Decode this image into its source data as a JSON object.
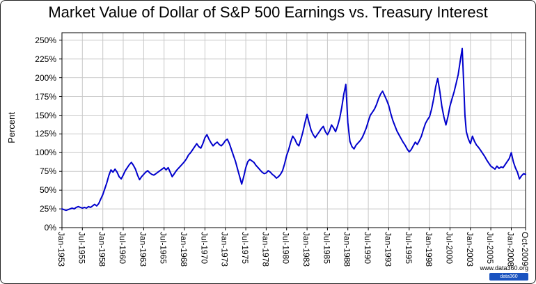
{
  "watermark": {
    "url_text": "www.data360.org",
    "logo_text": "data360",
    "logo_color": "#1a53c0"
  },
  "chart_data": {
    "type": "line",
    "title": "Market Value of Dollar of S&P 500 Earnings vs. Treasury Interest",
    "xlabel": "",
    "ylabel": "Percent",
    "xlim": [
      1953.0,
      2009.75
    ],
    "ylim": [
      0,
      260
    ],
    "grid": true,
    "legend": "none",
    "line_color": "#0000CC",
    "yticks": [
      {
        "v": 0,
        "label": "0%"
      },
      {
        "v": 25,
        "label": "25%"
      },
      {
        "v": 50,
        "label": "50%"
      },
      {
        "v": 75,
        "label": "75%"
      },
      {
        "v": 100,
        "label": "100%"
      },
      {
        "v": 125,
        "label": "125%"
      },
      {
        "v": 150,
        "label": "150%"
      },
      {
        "v": 175,
        "label": "175%"
      },
      {
        "v": 200,
        "label": "200%"
      },
      {
        "v": 225,
        "label": "225%"
      },
      {
        "v": 250,
        "label": "250%"
      }
    ],
    "xticks": [
      {
        "x": 1953.0,
        "label": "Jan-1953"
      },
      {
        "x": 1955.5,
        "label": "Jul-1955"
      },
      {
        "x": 1958.0,
        "label": "Jan-1958"
      },
      {
        "x": 1960.5,
        "label": "Jul-1960"
      },
      {
        "x": 1963.0,
        "label": "Jan-1963"
      },
      {
        "x": 1965.5,
        "label": "Jul-1965"
      },
      {
        "x": 1968.0,
        "label": "Jan-1968"
      },
      {
        "x": 1970.5,
        "label": "Jul-1970"
      },
      {
        "x": 1973.0,
        "label": "Jan-1973"
      },
      {
        "x": 1975.5,
        "label": "Jul-1975"
      },
      {
        "x": 1978.0,
        "label": "Jan-1978"
      },
      {
        "x": 1980.5,
        "label": "Jul-1980"
      },
      {
        "x": 1983.0,
        "label": "Jan-1983"
      },
      {
        "x": 1985.5,
        "label": "Jul-1985"
      },
      {
        "x": 1988.0,
        "label": "Jan-1988"
      },
      {
        "x": 1990.5,
        "label": "Jul-1990"
      },
      {
        "x": 1993.0,
        "label": "Jan-1993"
      },
      {
        "x": 1995.5,
        "label": "Jul-1995"
      },
      {
        "x": 1998.0,
        "label": "Jan-1998"
      },
      {
        "x": 2000.5,
        "label": "Jul-2000"
      },
      {
        "x": 2003.0,
        "label": "Jan-2003"
      },
      {
        "x": 2005.5,
        "label": "Jul-2005"
      },
      {
        "x": 2008.0,
        "label": "Jan-2008"
      },
      {
        "x": 2009.75,
        "label": "Oct-2009"
      }
    ],
    "series": [
      {
        "name": "Market value of dollar of S&P 500 earnings vs. treasury interest (%)",
        "points": [
          [
            1953.0,
            25
          ],
          [
            1953.25,
            24
          ],
          [
            1953.5,
            23
          ],
          [
            1953.75,
            24
          ],
          [
            1954.0,
            25
          ],
          [
            1954.25,
            26
          ],
          [
            1954.5,
            25
          ],
          [
            1954.75,
            27
          ],
          [
            1955.0,
            28
          ],
          [
            1955.25,
            27
          ],
          [
            1955.5,
            26
          ],
          [
            1955.75,
            27
          ],
          [
            1956.0,
            26
          ],
          [
            1956.25,
            28
          ],
          [
            1956.5,
            27
          ],
          [
            1956.75,
            29
          ],
          [
            1957.0,
            31
          ],
          [
            1957.25,
            29
          ],
          [
            1957.5,
            32
          ],
          [
            1957.75,
            38
          ],
          [
            1958.0,
            44
          ],
          [
            1958.25,
            52
          ],
          [
            1958.5,
            60
          ],
          [
            1958.75,
            70
          ],
          [
            1959.0,
            77
          ],
          [
            1959.25,
            74
          ],
          [
            1959.5,
            78
          ],
          [
            1959.75,
            74
          ],
          [
            1960.0,
            68
          ],
          [
            1960.25,
            65
          ],
          [
            1960.5,
            70
          ],
          [
            1960.75,
            76
          ],
          [
            1961.0,
            80
          ],
          [
            1961.25,
            84
          ],
          [
            1961.5,
            87
          ],
          [
            1961.75,
            83
          ],
          [
            1962.0,
            78
          ],
          [
            1962.25,
            70
          ],
          [
            1962.5,
            64
          ],
          [
            1962.75,
            68
          ],
          [
            1963.0,
            71
          ],
          [
            1963.25,
            74
          ],
          [
            1963.5,
            76
          ],
          [
            1963.75,
            73
          ],
          [
            1964.0,
            71
          ],
          [
            1964.25,
            70
          ],
          [
            1964.5,
            72
          ],
          [
            1964.75,
            74
          ],
          [
            1965.0,
            76
          ],
          [
            1965.25,
            78
          ],
          [
            1965.5,
            80
          ],
          [
            1965.75,
            77
          ],
          [
            1966.0,
            80
          ],
          [
            1966.25,
            74
          ],
          [
            1966.5,
            68
          ],
          [
            1966.75,
            72
          ],
          [
            1967.0,
            76
          ],
          [
            1967.25,
            79
          ],
          [
            1967.5,
            82
          ],
          [
            1967.75,
            85
          ],
          [
            1968.0,
            88
          ],
          [
            1968.25,
            92
          ],
          [
            1968.5,
            97
          ],
          [
            1968.75,
            100
          ],
          [
            1969.0,
            104
          ],
          [
            1969.25,
            108
          ],
          [
            1969.5,
            112
          ],
          [
            1969.75,
            108
          ],
          [
            1970.0,
            106
          ],
          [
            1970.25,
            112
          ],
          [
            1970.5,
            120
          ],
          [
            1970.75,
            124
          ],
          [
            1971.0,
            118
          ],
          [
            1971.25,
            113
          ],
          [
            1971.5,
            109
          ],
          [
            1971.75,
            112
          ],
          [
            1972.0,
            114
          ],
          [
            1972.25,
            111
          ],
          [
            1972.5,
            109
          ],
          [
            1972.75,
            112
          ],
          [
            1973.0,
            116
          ],
          [
            1973.25,
            118
          ],
          [
            1973.5,
            112
          ],
          [
            1973.75,
            104
          ],
          [
            1974.0,
            96
          ],
          [
            1974.25,
            88
          ],
          [
            1974.5,
            78
          ],
          [
            1974.75,
            68
          ],
          [
            1975.0,
            58
          ],
          [
            1975.25,
            68
          ],
          [
            1975.5,
            80
          ],
          [
            1975.75,
            88
          ],
          [
            1976.0,
            91
          ],
          [
            1976.25,
            89
          ],
          [
            1976.5,
            87
          ],
          [
            1976.75,
            83
          ],
          [
            1977.0,
            80
          ],
          [
            1977.25,
            77
          ],
          [
            1977.5,
            74
          ],
          [
            1977.75,
            72
          ],
          [
            1978.0,
            73
          ],
          [
            1978.25,
            76
          ],
          [
            1978.5,
            74
          ],
          [
            1978.75,
            71
          ],
          [
            1979.0,
            69
          ],
          [
            1979.25,
            66
          ],
          [
            1979.5,
            68
          ],
          [
            1979.75,
            71
          ],
          [
            1980.0,
            76
          ],
          [
            1980.25,
            85
          ],
          [
            1980.5,
            96
          ],
          [
            1980.75,
            104
          ],
          [
            1981.0,
            114
          ],
          [
            1981.25,
            122
          ],
          [
            1981.5,
            118
          ],
          [
            1981.75,
            112
          ],
          [
            1982.0,
            109
          ],
          [
            1982.25,
            118
          ],
          [
            1982.5,
            128
          ],
          [
            1982.75,
            140
          ],
          [
            1983.0,
            151
          ],
          [
            1983.25,
            140
          ],
          [
            1983.5,
            130
          ],
          [
            1983.75,
            124
          ],
          [
            1984.0,
            120
          ],
          [
            1984.25,
            124
          ],
          [
            1984.5,
            128
          ],
          [
            1984.75,
            132
          ],
          [
            1985.0,
            135
          ],
          [
            1985.25,
            128
          ],
          [
            1985.5,
            124
          ],
          [
            1985.75,
            129
          ],
          [
            1986.0,
            137
          ],
          [
            1986.25,
            133
          ],
          [
            1986.5,
            128
          ],
          [
            1986.75,
            136
          ],
          [
            1987.0,
            146
          ],
          [
            1987.25,
            160
          ],
          [
            1987.5,
            178
          ],
          [
            1987.75,
            191
          ],
          [
            1988.0,
            140
          ],
          [
            1988.25,
            115
          ],
          [
            1988.5,
            108
          ],
          [
            1988.75,
            105
          ],
          [
            1989.0,
            110
          ],
          [
            1989.25,
            113
          ],
          [
            1989.5,
            116
          ],
          [
            1989.75,
            120
          ],
          [
            1990.0,
            126
          ],
          [
            1990.25,
            133
          ],
          [
            1990.5,
            142
          ],
          [
            1990.75,
            150
          ],
          [
            1991.0,
            154
          ],
          [
            1991.25,
            158
          ],
          [
            1991.5,
            164
          ],
          [
            1991.75,
            172
          ],
          [
            1992.0,
            178
          ],
          [
            1992.25,
            182
          ],
          [
            1992.5,
            176
          ],
          [
            1992.75,
            170
          ],
          [
            1993.0,
            163
          ],
          [
            1993.25,
            152
          ],
          [
            1993.5,
            143
          ],
          [
            1993.75,
            136
          ],
          [
            1994.0,
            129
          ],
          [
            1994.25,
            124
          ],
          [
            1994.5,
            119
          ],
          [
            1994.75,
            114
          ],
          [
            1995.0,
            110
          ],
          [
            1995.25,
            105
          ],
          [
            1995.5,
            101
          ],
          [
            1995.75,
            104
          ],
          [
            1996.0,
            109
          ],
          [
            1996.25,
            114
          ],
          [
            1996.5,
            111
          ],
          [
            1996.75,
            116
          ],
          [
            1997.0,
            122
          ],
          [
            1997.25,
            131
          ],
          [
            1997.5,
            139
          ],
          [
            1997.75,
            144
          ],
          [
            1998.0,
            148
          ],
          [
            1998.25,
            158
          ],
          [
            1998.5,
            172
          ],
          [
            1998.75,
            188
          ],
          [
            1999.0,
            199
          ],
          [
            1999.25,
            182
          ],
          [
            1999.5,
            162
          ],
          [
            1999.75,
            148
          ],
          [
            2000.0,
            137
          ],
          [
            2000.25,
            148
          ],
          [
            2000.5,
            162
          ],
          [
            2000.75,
            172
          ],
          [
            2001.0,
            181
          ],
          [
            2001.25,
            192
          ],
          [
            2001.5,
            204
          ],
          [
            2001.75,
            222
          ],
          [
            2002.0,
            239
          ],
          [
            2002.17,
            195
          ],
          [
            2002.33,
            150
          ],
          [
            2002.5,
            128
          ],
          [
            2002.75,
            118
          ],
          [
            2003.0,
            112
          ],
          [
            2003.25,
            122
          ],
          [
            2003.5,
            115
          ],
          [
            2003.75,
            110
          ],
          [
            2004.0,
            107
          ],
          [
            2004.25,
            103
          ],
          [
            2004.5,
            99
          ],
          [
            2004.75,
            95
          ],
          [
            2005.0,
            90
          ],
          [
            2005.25,
            86
          ],
          [
            2005.5,
            82
          ],
          [
            2005.75,
            80
          ],
          [
            2006.0,
            78
          ],
          [
            2006.25,
            82
          ],
          [
            2006.5,
            79
          ],
          [
            2006.75,
            81
          ],
          [
            2007.0,
            80
          ],
          [
            2007.25,
            84
          ],
          [
            2007.5,
            88
          ],
          [
            2007.75,
            92
          ],
          [
            2008.0,
            100
          ],
          [
            2008.25,
            88
          ],
          [
            2008.5,
            80
          ],
          [
            2008.75,
            74
          ],
          [
            2009.0,
            65
          ],
          [
            2009.25,
            69
          ],
          [
            2009.5,
            72
          ],
          [
            2009.75,
            71
          ]
        ]
      }
    ]
  }
}
